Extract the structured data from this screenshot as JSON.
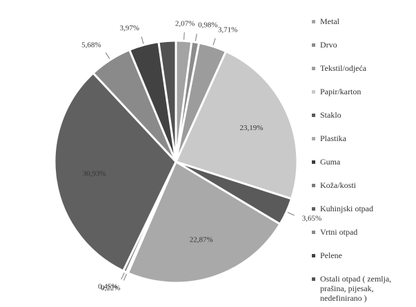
{
  "chart_data": {
    "type": "pie",
    "categories": [
      "Metal",
      "Drvo",
      "Tekstil/odjeća",
      "Papir/karton",
      "Staklo",
      "Plastika",
      "Guma",
      "Koža/kosti",
      "Kuhinjski otpad",
      "Vrtni otpad",
      "Pelene",
      "Ostali otpad ( zemlja, prašina, pijesak, nedefinirano )"
    ],
    "values": [
      2.07,
      0.98,
      3.71,
      23.19,
      3.65,
      22.87,
      0.22,
      0.45,
      30.93,
      5.68,
      3.97,
      2.28
    ],
    "value_labels": [
      "2,07%",
      "0,98%",
      "3,71%",
      "23,19%",
      "3,65%",
      "22,87%",
      "0,22%",
      "0,45%",
      "30,93%",
      "5,68%",
      "3,97%",
      null
    ],
    "colors": [
      "#a3a3a3",
      "#8c8c8c",
      "#9c9c9c",
      "#c9c9c9",
      "#5a5a5a",
      "#a9a9a9",
      "#3c3c3c",
      "#7c7c7c",
      "#606060",
      "#8a8a8a",
      "#424242",
      "#525252"
    ],
    "legend": "right"
  }
}
